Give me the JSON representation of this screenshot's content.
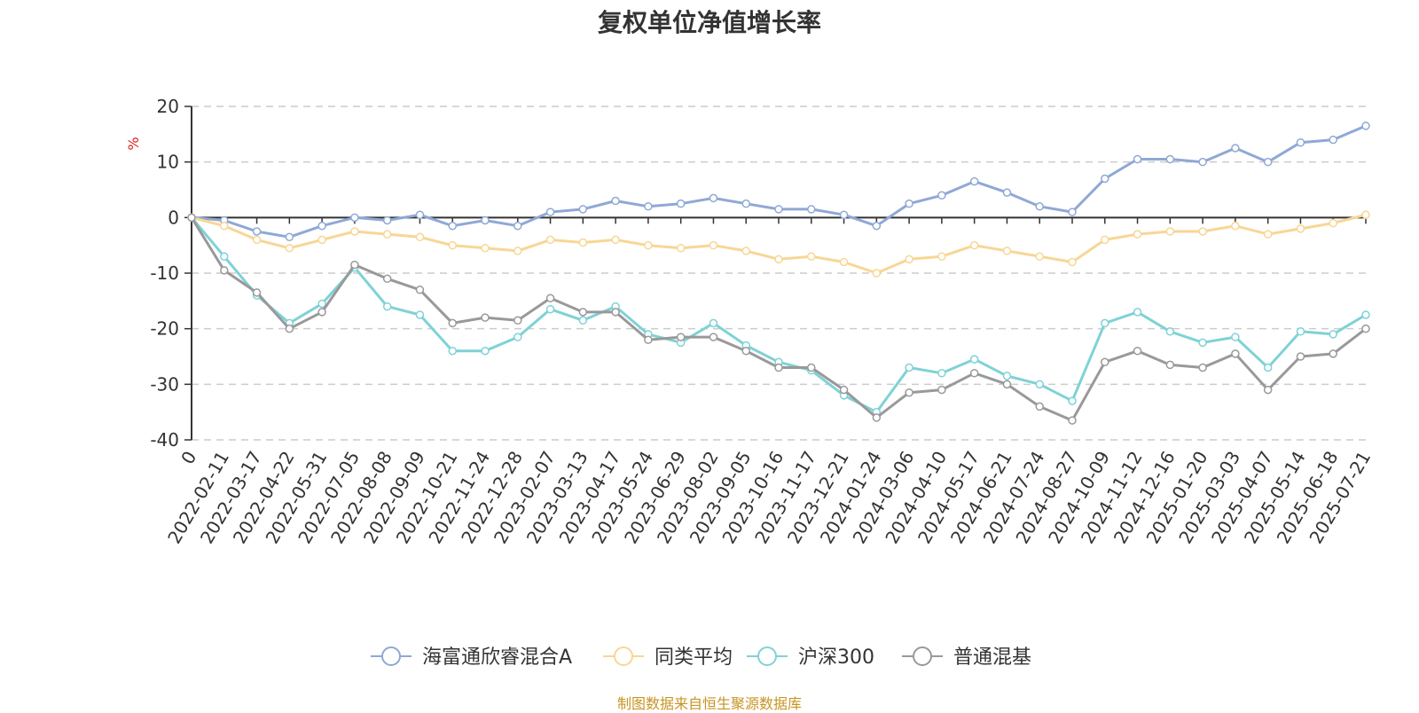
{
  "chart_data": {
    "type": "line",
    "title": "复权单位净值增长率",
    "ylabel": "%",
    "xlabel": "",
    "ylim": [
      -40,
      20
    ],
    "yticks": [
      20,
      10,
      0,
      -10,
      -20,
      -30,
      -40
    ],
    "grid": true,
    "legend_position": "bottom",
    "x_tick_labels": [
      "0",
      "2022-02-11",
      "2022-03-17",
      "2022-04-22",
      "2022-05-31",
      "2022-07-05",
      "2022-08-08",
      "2022-09-09",
      "2022-10-21",
      "2022-11-24",
      "2022-12-28",
      "2023-02-07",
      "2023-03-13",
      "2023-04-17",
      "2023-05-24",
      "2023-06-29",
      "2023-08-02",
      "2023-09-05",
      "2023-10-16",
      "2023-11-17",
      "2023-12-21",
      "2024-01-24",
      "2024-03-06",
      "2024-04-10",
      "2024-05-17",
      "2024-06-21",
      "2024-07-24",
      "2024-08-27",
      "2024-10-09",
      "2024-11-12",
      "2024-12-16",
      "2025-01-20",
      "2025-03-03",
      "2025-04-07",
      "2025-05-14",
      "2025-06-18",
      "2025-07-21"
    ],
    "series": [
      {
        "name": "海富通欣睿混合A",
        "color": "#8fa8d6",
        "values": [
          0,
          -0.5,
          -2.5,
          -3.5,
          -1.5,
          0,
          -0.5,
          0.5,
          -1.5,
          -0.5,
          -1.5,
          1,
          1.5,
          3,
          2,
          2.5,
          3.5,
          2.5,
          1.5,
          1.5,
          0.5,
          -1.5,
          2.5,
          4,
          6.5,
          4.5,
          2,
          1,
          7,
          10.5,
          10.5,
          10,
          12.5,
          10,
          13.5,
          14,
          16.5
        ]
      },
      {
        "name": "同类平均",
        "color": "#f8d695",
        "values": [
          0,
          -1.5,
          -4,
          -5.5,
          -4,
          -2.5,
          -3,
          -3.5,
          -5,
          -5.5,
          -6,
          -4,
          -4.5,
          -4,
          -5,
          -5.5,
          -5,
          -6,
          -7.5,
          -7,
          -8,
          -10,
          -7.5,
          -7,
          -5,
          -6,
          -7,
          -8,
          -4,
          -3,
          -2.5,
          -2.5,
          -1.5,
          -3,
          -2,
          -1,
          0.5
        ]
      },
      {
        "name": "沪深300",
        "color": "#7fd2d6",
        "values": [
          0,
          -7,
          -14,
          -19,
          -15.5,
          -9,
          -16,
          -17.5,
          -24,
          -24,
          -21.5,
          -16.5,
          -18.5,
          -16,
          -21,
          -22.5,
          -19,
          -23,
          -26,
          -27.5,
          -32,
          -35,
          -27,
          -28,
          -25.5,
          -28.5,
          -30,
          -33,
          -19,
          -17,
          -20.5,
          -22.5,
          -21.5,
          -27,
          -20.5,
          -21,
          -17.5
        ]
      },
      {
        "name": "普通混基",
        "color": "#999999",
        "values": [
          0,
          -9.5,
          -13.5,
          -20,
          -17,
          -8.5,
          -11,
          -13,
          -19,
          -18,
          -18.5,
          -14.5,
          -17,
          -17,
          -22,
          -21.5,
          -21.5,
          -24,
          -27,
          -27,
          -31,
          -36,
          -31.5,
          -31,
          -28,
          -30,
          -34,
          -36.5,
          -26,
          -24,
          -26.5,
          -27,
          -24.5,
          -31,
          -25,
          -24.5,
          -20
        ]
      }
    ]
  },
  "footer": "制图数据来自恒生聚源数据库"
}
